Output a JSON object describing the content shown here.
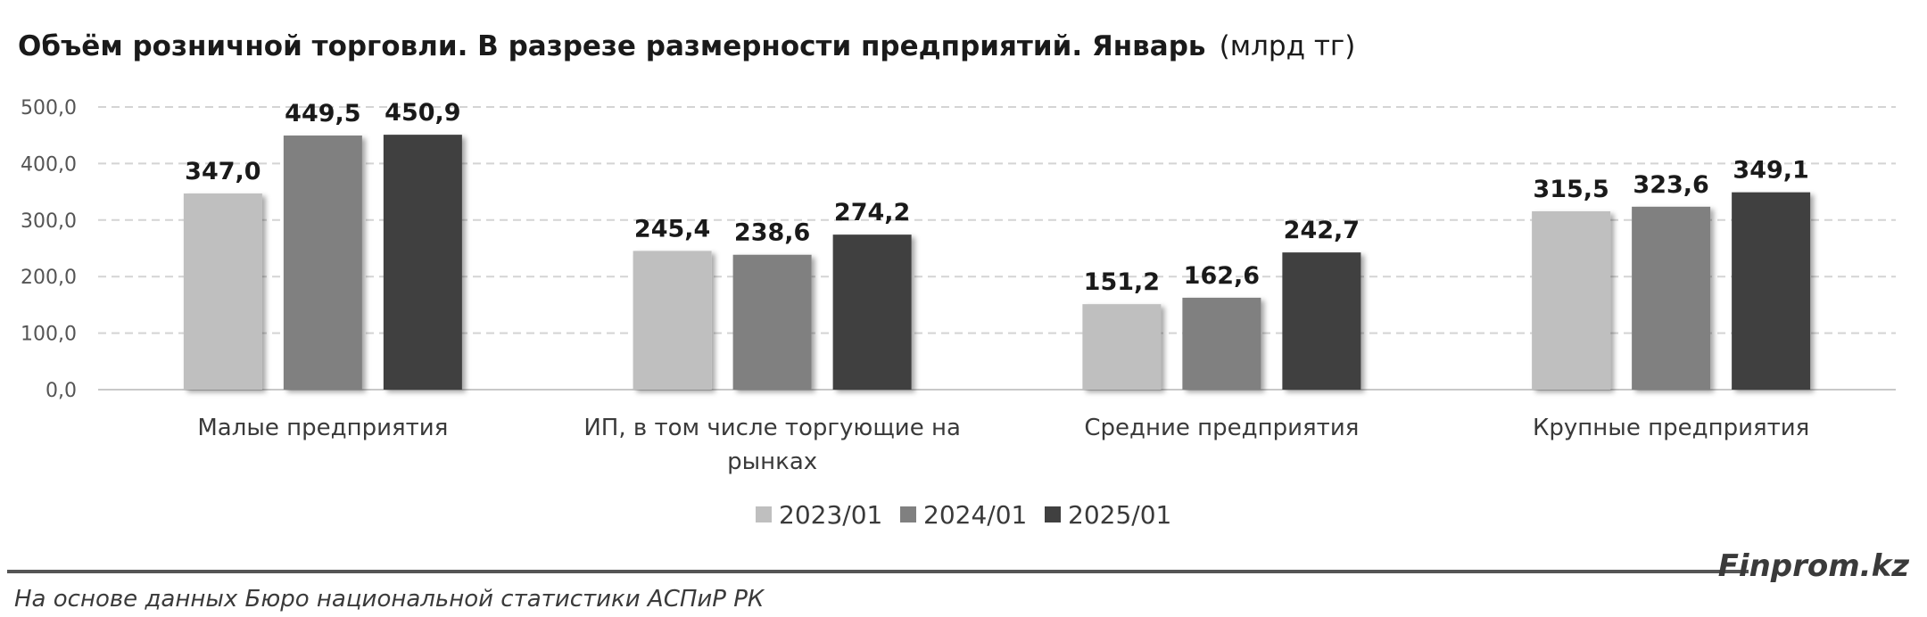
{
  "title": {
    "main": "Объём розничной торговли. В разрезе размерности предприятий. Январь",
    "unit": "(млрд тг)"
  },
  "chart_data": {
    "type": "bar",
    "title": "Объём розничной торговли. В разрезе размерности предприятий. Январь (млрд тг)",
    "categories": [
      [
        "Малые предприятия"
      ],
      [
        "ИП, в том числе торгующие на",
        "рынках"
      ],
      [
        "Средние предприятия"
      ],
      [
        "Крупные предприятия"
      ]
    ],
    "series": [
      {
        "name": "2023/01",
        "color": "#bfbfbf",
        "values": [
          347.0,
          245.4,
          151.2,
          315.5
        ],
        "labels": [
          "347,0",
          "245,4",
          "151,2",
          "315,5"
        ]
      },
      {
        "name": "2024/01",
        "color": "#808080",
        "values": [
          449.5,
          238.6,
          162.6,
          323.6
        ],
        "labels": [
          "449,5",
          "238,6",
          "162,6",
          "323,6"
        ]
      },
      {
        "name": "2025/01",
        "color": "#404040",
        "values": [
          450.9,
          274.2,
          242.7,
          349.1
        ],
        "labels": [
          "450,9",
          "274,2",
          "242,7",
          "349,1"
        ]
      }
    ],
    "ylim": [
      0,
      500
    ],
    "yticks": [
      0,
      100,
      200,
      300,
      400,
      500
    ],
    "ytick_labels": [
      "0,0",
      "100,0",
      "200,0",
      "300,0",
      "400,0",
      "500,0"
    ],
    "grid": true,
    "legend": "bottom"
  },
  "footer": {
    "source": "На основе данных Бюро национальной статистики АСПиР РК",
    "brand": "Finprom.kz"
  }
}
